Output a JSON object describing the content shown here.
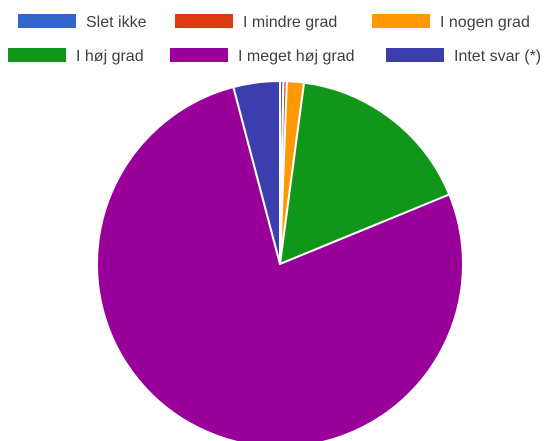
{
  "chart_data": {
    "type": "pie",
    "title": "",
    "legend_position": "top",
    "slices": [
      {
        "label": "Slet ikke",
        "value": 0.3,
        "color": "#3366cc"
      },
      {
        "label": "I mindre grad",
        "value": 0.3,
        "color": "#dc3912"
      },
      {
        "label": "I nogen grad",
        "value": 1.5,
        "color": "#ff9900"
      },
      {
        "label": "I høj grad",
        "value": 16.7,
        "color": "#109618"
      },
      {
        "label": "I meget høj grad",
        "value": 77.1,
        "color": "#990099"
      },
      {
        "label": "Intet svar (*)",
        "value": 4.1,
        "color": "#3b3eac"
      }
    ]
  }
}
